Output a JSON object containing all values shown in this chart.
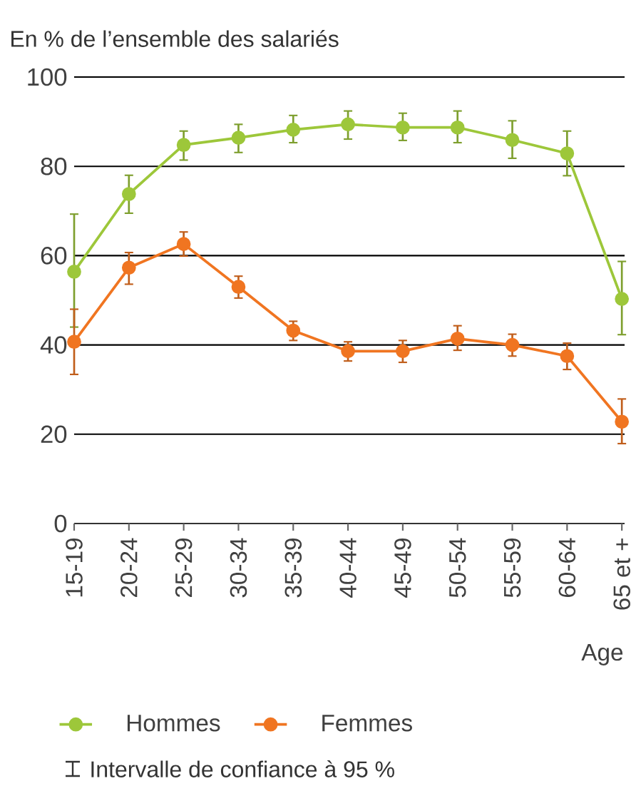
{
  "chart_data": {
    "type": "line",
    "ylabel": "En % de l’ensemble des salariés",
    "xlabel": "Age",
    "categories": [
      "15-19",
      "20-24",
      "25-29",
      "30-34",
      "35-39",
      "40-44",
      "45-49",
      "50-54",
      "55-59",
      "60-64",
      "65 et +"
    ],
    "series": [
      {
        "name": "Hommes",
        "color": "#9dc73a",
        "values": [
          56.4,
          73.8,
          84.8,
          86.4,
          88.2,
          89.4,
          88.7,
          88.7,
          85.9,
          82.9,
          50.3
        ],
        "errors": [
          [
            44,
            69.3
          ],
          [
            69.5,
            78
          ],
          [
            81.4,
            87.9
          ],
          [
            83.1,
            89.4
          ],
          [
            85.3,
            91.4
          ],
          [
            86.1,
            92.4
          ],
          [
            85.8,
            91.9
          ],
          [
            85.3,
            92.4
          ],
          [
            81.8,
            90.2
          ],
          [
            77.9,
            87.9
          ],
          [
            42.3,
            58.7
          ]
        ]
      },
      {
        "name": "Femmes",
        "color": "#f07521",
        "values": [
          40.7,
          57.3,
          62.6,
          53,
          43.2,
          38.6,
          38.6,
          41.4,
          40,
          37.5,
          22.8
        ],
        "errors": [
          [
            33.4,
            48
          ],
          [
            53.6,
            60.7
          ],
          [
            59.9,
            65.3
          ],
          [
            50.5,
            55.4
          ],
          [
            41,
            45.3
          ],
          [
            36.4,
            40.7
          ],
          [
            36.1,
            41
          ],
          [
            38.8,
            44.3
          ],
          [
            37.5,
            42.4
          ],
          [
            34.5,
            40.4
          ],
          [
            17.9,
            27.9
          ]
        ]
      }
    ],
    "ylim": [
      0,
      100
    ],
    "yticks": [
      0,
      20,
      40,
      60,
      80,
      100
    ],
    "grid": "y",
    "legend": "bottom",
    "marker": "circle",
    "line_style": "solid",
    "annotations": [
      "Intervalle de confiance à 95 %"
    ]
  }
}
